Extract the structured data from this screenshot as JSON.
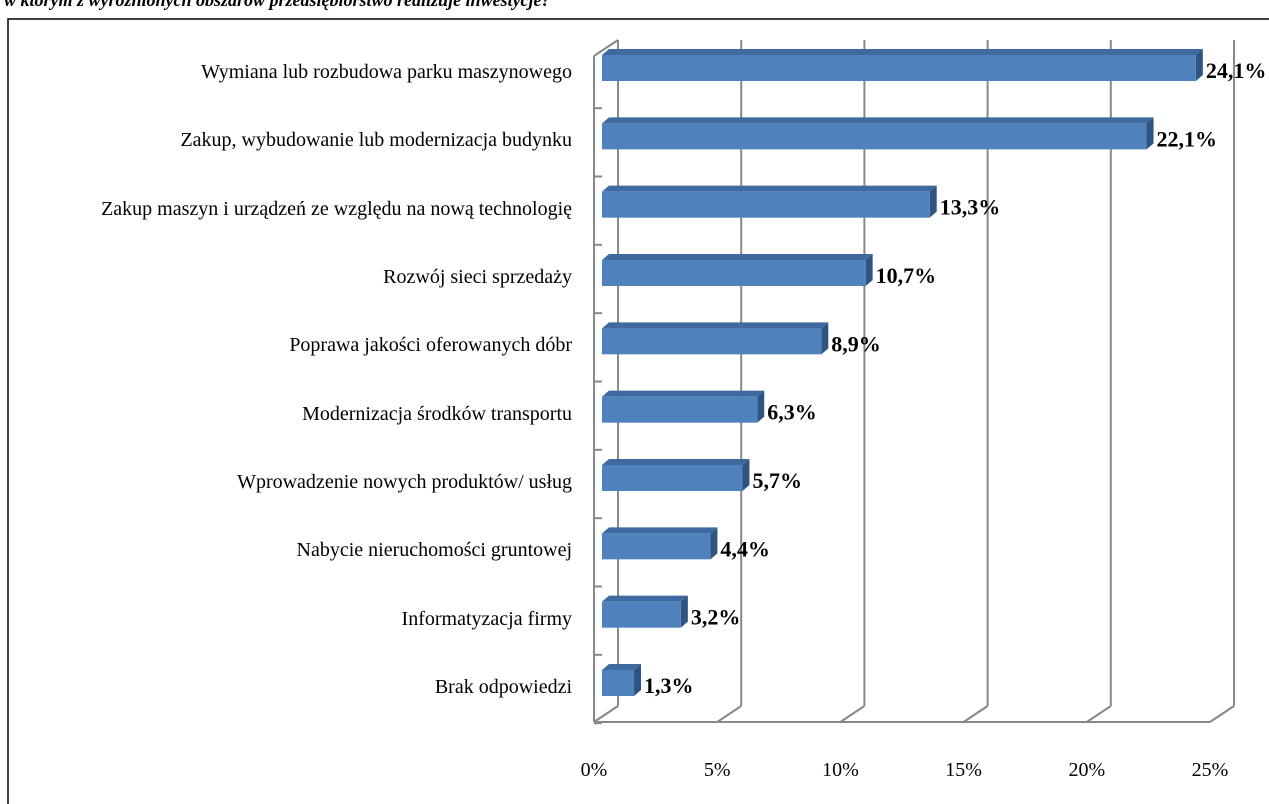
{
  "chart_data": {
    "type": "bar",
    "orientation": "horizontal",
    "title": "w którym z wyróżnionych obszarów przedsiębiorstwo realizuje inwestycje?",
    "categories": [
      "Wymiana lub rozbudowa parku maszynowego",
      "Zakup, wybudowanie lub modernizacja budynku",
      "Zakup maszyn i urządzeń ze względu na nową technologię",
      "Rozwój sieci sprzedaży",
      "Poprawa jakości oferowanych dóbr",
      "Modernizacja środków transportu",
      "Wprowadzenie nowych produktów/ usług",
      "Nabycie nieruchomości gruntowej",
      "Informatyzacja firmy",
      "Brak odpowiedzi"
    ],
    "values": [
      24.1,
      22.1,
      13.3,
      10.7,
      8.9,
      6.3,
      5.7,
      4.4,
      3.2,
      1.3
    ],
    "value_labels": [
      "24,1%",
      "22,1%",
      "13,3%",
      "10,7%",
      "8,9%",
      "6,3%",
      "5,7%",
      "4,4%",
      "3,2%",
      "1,3%"
    ],
    "color": "#4f81bd",
    "xlim": [
      0,
      25
    ],
    "xticks": [
      {
        "value": 0,
        "label": "0%"
      },
      {
        "value": 5,
        "label": "5%"
      },
      {
        "value": 10,
        "label": "10%"
      },
      {
        "value": 15,
        "label": "15%"
      },
      {
        "value": 20,
        "label": "20%"
      },
      {
        "value": 25,
        "label": "25%"
      }
    ],
    "grid": true
  }
}
